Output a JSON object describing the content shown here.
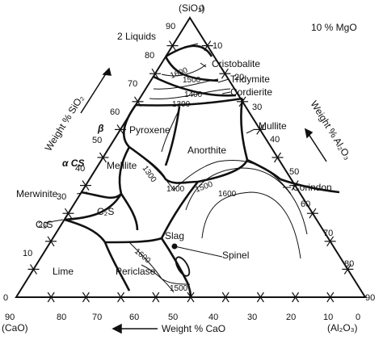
{
  "diagram": {
    "vertices": {
      "top": "(SiO₂)",
      "left": "(CaO)",
      "right": "(Al₂O₃)"
    },
    "condition": "10 % MgO",
    "axes": {
      "sio2": {
        "label": "Weight % SiO₂",
        "ticks": [
          "90",
          "80",
          "70",
          "60",
          "50",
          "40",
          "30",
          "20",
          "10",
          "0"
        ]
      },
      "al2o3": {
        "label": "Weight % Al₂O₃",
        "ticks": [
          "0",
          "10",
          "20",
          "30",
          "40",
          "50",
          "60",
          "70",
          "80",
          "90"
        ]
      },
      "cao": {
        "label": "Weight % CaO",
        "ticks": [
          "90",
          "80",
          "70",
          "60",
          "50",
          "40",
          "30",
          "20",
          "10",
          "0"
        ]
      }
    },
    "phases": {
      "two_liquids": "2 Liquids",
      "cristobalite": "Cristobalite",
      "tridymite": "Tridymite",
      "cordierite": "Cordierite",
      "mullite": "Mullite",
      "pyroxene": "Pyroxene",
      "anorthite": "Anorthite",
      "melilite": "Melilite",
      "merwinite": "Merwinite",
      "c2s": "C₂S",
      "c3s": "C₃S",
      "lime": "Lime",
      "periclase": "Periclase",
      "spinel": "Spinel",
      "corindon": "Corindon",
      "slag": "Slag",
      "alpha_cs": "α CS",
      "beta": "β"
    },
    "isotherms": [
      "1600",
      "1500",
      "1400",
      "1300",
      "1300",
      "1500",
      "1400",
      "1600",
      "1500",
      "1600"
    ]
  }
}
